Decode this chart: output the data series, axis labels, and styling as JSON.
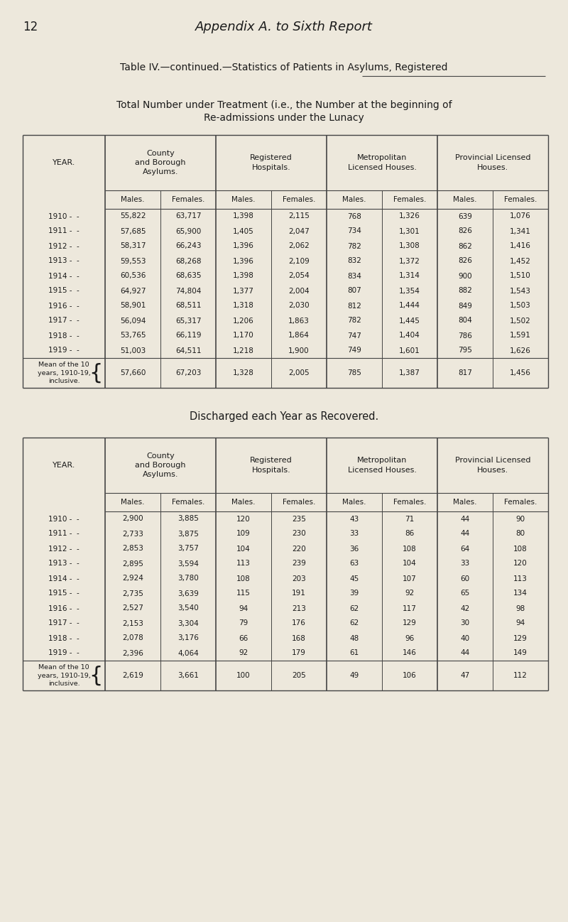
{
  "page_number": "12",
  "page_title": "Appendix A. to Sixth Report",
  "table_title_line1": "Table IV.—continued.—Statistics of Patients in Asylums, Registered",
  "subtitle_line1": "Total Number under Treatment (i.e., the Number at the beginning of",
  "subtitle_line2": "Re-admissions under the Lunacy",
  "section2_title": "Discharged each Year as Recovered.",
  "bg_color": "#ede8dc",
  "text_color": "#1a1a1a",
  "years": [
    "1910 -  -",
    "1911 -  -",
    "1912 -  -",
    "1913 -  -",
    "1914 -  -",
    "1915 -  -",
    "1916 -  -",
    "1917 -  -",
    "1918 -  -",
    "1919 -  -"
  ],
  "table1_data": [
    [
      55822,
      63717,
      1398,
      2115,
      768,
      1326,
      639,
      1076
    ],
    [
      57685,
      65900,
      1405,
      2047,
      734,
      1301,
      826,
      1341
    ],
    [
      58317,
      66243,
      1396,
      2062,
      782,
      1308,
      862,
      1416
    ],
    [
      59553,
      68268,
      1396,
      2109,
      832,
      1372,
      826,
      1452
    ],
    [
      60536,
      68635,
      1398,
      2054,
      834,
      1314,
      900,
      1510
    ],
    [
      64927,
      74804,
      1377,
      2004,
      807,
      1354,
      882,
      1543
    ],
    [
      58901,
      68511,
      1318,
      2030,
      812,
      1444,
      849,
      1503
    ],
    [
      56094,
      65317,
      1206,
      1863,
      782,
      1445,
      804,
      1502
    ],
    [
      53765,
      66119,
      1170,
      1864,
      747,
      1404,
      786,
      1591
    ],
    [
      51003,
      64511,
      1218,
      1900,
      749,
      1601,
      795,
      1626
    ]
  ],
  "table1_mean": [
    57660,
    67203,
    1328,
    2005,
    785,
    1387,
    817,
    1456
  ],
  "mean_label": "Mean of the 10\nyears, 1910-19,\ninclusive.",
  "table2_data": [
    [
      2900,
      3885,
      120,
      235,
      43,
      71,
      44,
      90
    ],
    [
      2733,
      3875,
      109,
      230,
      33,
      86,
      44,
      80
    ],
    [
      2853,
      3757,
      104,
      220,
      36,
      108,
      64,
      108
    ],
    [
      2895,
      3594,
      113,
      239,
      63,
      104,
      33,
      120
    ],
    [
      2924,
      3780,
      108,
      203,
      45,
      107,
      60,
      113
    ],
    [
      2735,
      3639,
      115,
      191,
      39,
      92,
      65,
      134
    ],
    [
      2527,
      3540,
      94,
      213,
      62,
      117,
      42,
      98
    ],
    [
      2153,
      3304,
      79,
      176,
      62,
      129,
      30,
      94
    ],
    [
      2078,
      3176,
      66,
      168,
      48,
      96,
      40,
      129
    ],
    [
      2396,
      4064,
      92,
      179,
      61,
      146,
      44,
      149
    ]
  ],
  "table2_mean": [
    2619,
    3661,
    100,
    205,
    49,
    106,
    47,
    112
  ]
}
